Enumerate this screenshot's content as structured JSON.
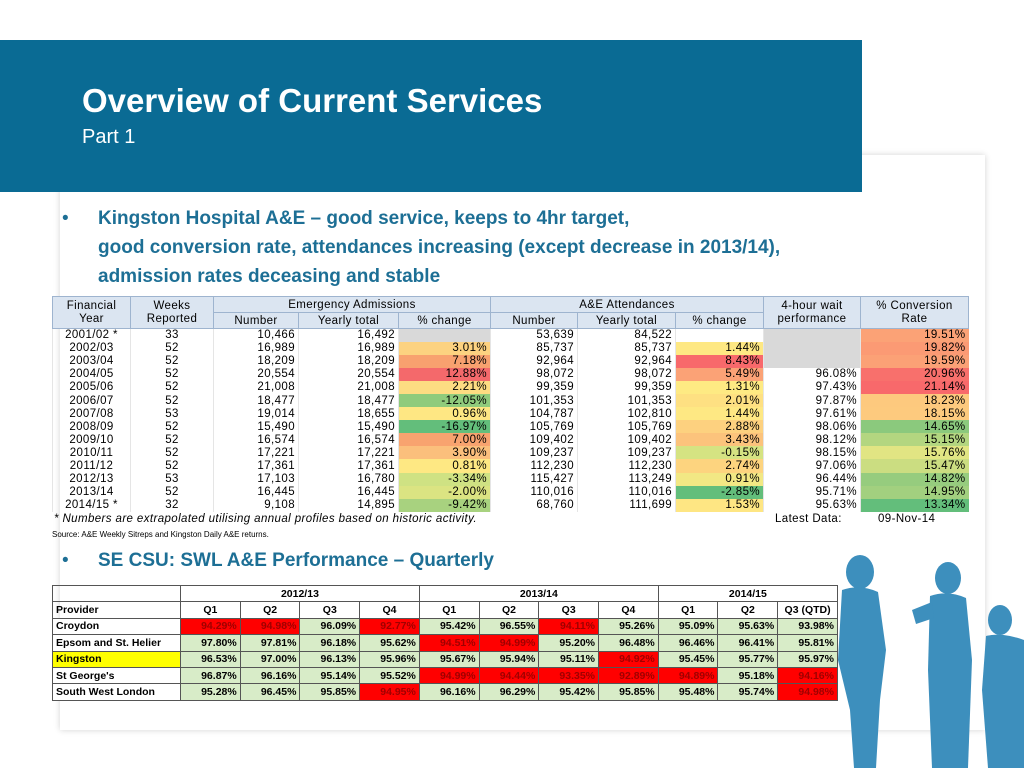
{
  "header": {
    "title": "Overview of Current Services",
    "subtitle": "Part 1"
  },
  "bullets": [
    {
      "lines": [
        "Kingston Hospital A&E – good service, keeps to 4hr target,",
        "good conversion rate, attendances increasing (except decrease in 2013/14),",
        "admission rates deceasing and stable"
      ]
    },
    {
      "lines": [
        "SE CSU: SWL A&E Performance – Quarterly"
      ]
    }
  ],
  "table1": {
    "header_top": [
      "Financial Year",
      "Weeks Reported",
      "Emergency Admissions",
      "A&E Attendances",
      "4-hour wait performance",
      "% Conversion Rate"
    ],
    "header_sub": [
      "Number",
      "Yearly total",
      "% change",
      "Number",
      "Yearly total",
      "% change"
    ],
    "rows": [
      {
        "cells": [
          "2001/02 *",
          "33",
          "10,466",
          "16,492",
          null,
          "53,639",
          "84,522",
          null,
          null,
          "19.51%"
        ],
        "fills": [
          null,
          null,
          null,
          null,
          "#d9d9d9",
          null,
          null,
          null,
          "#d9d9d9",
          "#fba276"
        ]
      },
      {
        "cells": [
          "2002/03",
          "52",
          "16,989",
          "16,989",
          "3.01%",
          "85,737",
          "85,737",
          "1.44%",
          null,
          "19.82%"
        ],
        "fills": [
          null,
          null,
          null,
          null,
          "#fcd280",
          null,
          null,
          "#fee883",
          "#d9d9d9",
          "#fb9a74"
        ]
      },
      {
        "cells": [
          "2003/04",
          "52",
          "18,209",
          "18,209",
          "7.18%",
          "92,964",
          "92,964",
          "8.43%",
          null,
          "19.59%"
        ],
        "fills": [
          null,
          null,
          null,
          null,
          "#f8a16f",
          null,
          null,
          "#f8696b",
          "#d9d9d9",
          "#fba176"
        ]
      },
      {
        "cells": [
          "2004/05",
          "52",
          "20,554",
          "20,554",
          "12.88%",
          "98,072",
          "98,072",
          "5.49%",
          "96.08%",
          "20.96%"
        ],
        "fills": [
          null,
          null,
          null,
          null,
          "#f4696b",
          null,
          null,
          "#fba276",
          null,
          "#f8706c"
        ]
      },
      {
        "cells": [
          "2005/06",
          "52",
          "21,008",
          "21,008",
          "2.21%",
          "99,359",
          "99,359",
          "1.31%",
          "97.43%",
          "21.14%"
        ],
        "fills": [
          null,
          null,
          null,
          null,
          "#fddc82",
          null,
          null,
          "#feea83",
          null,
          "#f8696b"
        ]
      },
      {
        "cells": [
          "2006/07",
          "52",
          "18,477",
          "18,477",
          "-12.05%",
          "101,353",
          "101,353",
          "2.01%",
          "97.87%",
          "18.23%"
        ],
        "fills": [
          null,
          null,
          null,
          null,
          "#8fcb7c",
          null,
          null,
          "#fee082",
          null,
          "#fdc97e"
        ]
      },
      {
        "cells": [
          "2007/08",
          "53",
          "19,014",
          "18,655",
          "0.96%",
          "104,787",
          "102,810",
          "1.44%",
          "97.61%",
          "18.15%"
        ],
        "fills": [
          null,
          null,
          null,
          null,
          "#fee783",
          null,
          null,
          "#fee883",
          null,
          "#fdca7e"
        ]
      },
      {
        "cells": [
          "2008/09",
          "52",
          "15,490",
          "15,490",
          "-16.97%",
          "105,769",
          "105,769",
          "2.88%",
          "98.06%",
          "14.65%"
        ],
        "fills": [
          null,
          null,
          null,
          null,
          "#63be7b",
          null,
          null,
          "#fdd17f",
          null,
          "#8bc97d"
        ]
      },
      {
        "cells": [
          "2009/10",
          "52",
          "16,574",
          "16,574",
          "7.00%",
          "109,402",
          "109,402",
          "3.43%",
          "98.12%",
          "15.15%"
        ],
        "fills": [
          null,
          null,
          null,
          null,
          "#f8a36f",
          null,
          null,
          "#fcc37c",
          null,
          "#b3d680"
        ]
      },
      {
        "cells": [
          "2010/11",
          "52",
          "17,221",
          "17,221",
          "3.90%",
          "109,237",
          "109,237",
          "-0.15%",
          "98.15%",
          "15.76%"
        ],
        "fills": [
          null,
          null,
          null,
          null,
          "#fbbf7c",
          null,
          null,
          "#d5e382",
          null,
          "#e1e583"
        ]
      },
      {
        "cells": [
          "2011/12",
          "52",
          "17,361",
          "17,361",
          "0.81%",
          "112,230",
          "112,230",
          "2.74%",
          "97.06%",
          "15.47%"
        ],
        "fills": [
          null,
          null,
          null,
          null,
          "#fee883",
          null,
          null,
          "#fdd47f",
          null,
          "#cbdd81"
        ]
      },
      {
        "cells": [
          "2012/13",
          "53",
          "17,103",
          "16,780",
          "-3.34%",
          "115,427",
          "113,249",
          "0.91%",
          "96.44%",
          "14.82%"
        ],
        "fills": [
          null,
          null,
          null,
          null,
          "#cfe283",
          null,
          null,
          "#f2e884",
          null,
          "#96cc7e"
        ]
      },
      {
        "cells": [
          "2013/14",
          "52",
          "16,445",
          "16,445",
          "-2.00%",
          "110,016",
          "110,016",
          "-2.85%",
          "95.71%",
          "14.95%"
        ],
        "fills": [
          null,
          null,
          null,
          null,
          "#dbe482",
          null,
          null,
          "#63be7b",
          null,
          "#a2d07f"
        ]
      },
      {
        "cells": [
          "2014/15 *",
          "32",
          "9,108",
          "14,895",
          "-9.42%",
          "68,760",
          "111,699",
          "1.53%",
          "95.63%",
          "13.34%"
        ],
        "fills": [
          null,
          null,
          null,
          null,
          "#a8d27f",
          null,
          null,
          "#fee683",
          null,
          "#63be7b"
        ]
      }
    ],
    "footnote": "* Numbers are extrapolated utilising annual profiles based on historic activity.",
    "latest_label": "Latest Data:",
    "latest_date": "09-Nov-14",
    "source": "Source: A&E Weekly Sitreps and Kingston Daily A&E returns."
  },
  "table2": {
    "groups": [
      "2012/13",
      "2013/14",
      "2014/15"
    ],
    "columns": [
      "Provider",
      "Q1",
      "Q2",
      "Q3",
      "Q4",
      "Q1",
      "Q2",
      "Q3",
      "Q4",
      "Q1",
      "Q2",
      "Q3 (QTD)"
    ],
    "rows": [
      {
        "cells": [
          "Croydon",
          "94.29%",
          "94.98%",
          "96.09%",
          "92.77%",
          "95.42%",
          "96.55%",
          "94.11%",
          "95.26%",
          "95.09%",
          "95.63%",
          "93.98%"
        ],
        "fills": [
          "#ffffff",
          "#ff0000",
          "#ff0000",
          "#d8ecc8",
          "#ff0000",
          "#d8ecc8",
          "#d8ecc8",
          "#ff0000",
          "#d8ecc8",
          "#d8ecc8",
          "#d8ecc8",
          "#d8ecc8"
        ]
      },
      {
        "cells": [
          "Epsom and St. Helier",
          "97.80%",
          "97.81%",
          "96.18%",
          "95.62%",
          "94.51%",
          "94.99%",
          "95.20%",
          "96.48%",
          "96.46%",
          "96.41%",
          "95.81%"
        ],
        "fills": [
          "#ffffff",
          "#d8ecc8",
          "#d8ecc8",
          "#d8ecc8",
          "#d8ecc8",
          "#ff0000",
          "#ff0000",
          "#d8ecc8",
          "#d8ecc8",
          "#d8ecc8",
          "#d8ecc8",
          "#d8ecc8"
        ]
      },
      {
        "cells": [
          "Kingston",
          "96.53%",
          "97.00%",
          "96.13%",
          "95.96%",
          "95.67%",
          "95.94%",
          "95.11%",
          "94.92%",
          "95.45%",
          "95.77%",
          "95.97%"
        ],
        "fills": [
          "#ffff00",
          "#d8ecc8",
          "#d8ecc8",
          "#d8ecc8",
          "#d8ecc8",
          "#d8ecc8",
          "#d8ecc8",
          "#d8ecc8",
          "#ff0000",
          "#d8ecc8",
          "#d8ecc8",
          "#d8ecc8"
        ]
      },
      {
        "cells": [
          "St George's",
          "96.87%",
          "96.16%",
          "95.14%",
          "95.52%",
          "94.99%",
          "94.44%",
          "93.35%",
          "92.89%",
          "94.89%",
          "95.18%",
          "94.16%"
        ],
        "fills": [
          "#ffffff",
          "#d8ecc8",
          "#d8ecc8",
          "#d8ecc8",
          "#d8ecc8",
          "#ff0000",
          "#ff0000",
          "#ff0000",
          "#ff0000",
          "#ff0000",
          "#d8ecc8",
          "#ff0000"
        ]
      },
      {
        "cells": [
          "South West London",
          "95.28%",
          "96.45%",
          "95.85%",
          "94.95%",
          "96.16%",
          "96.29%",
          "95.42%",
          "95.85%",
          "95.48%",
          "95.74%",
          "94.98%"
        ],
        "fills": [
          "#ffffff",
          "#d8ecc8",
          "#d8ecc8",
          "#d8ecc8",
          "#ff0000",
          "#d8ecc8",
          "#d8ecc8",
          "#d8ecc8",
          "#d8ecc8",
          "#d8ecc8",
          "#d8ecc8",
          "#ff0000"
        ]
      }
    ]
  }
}
